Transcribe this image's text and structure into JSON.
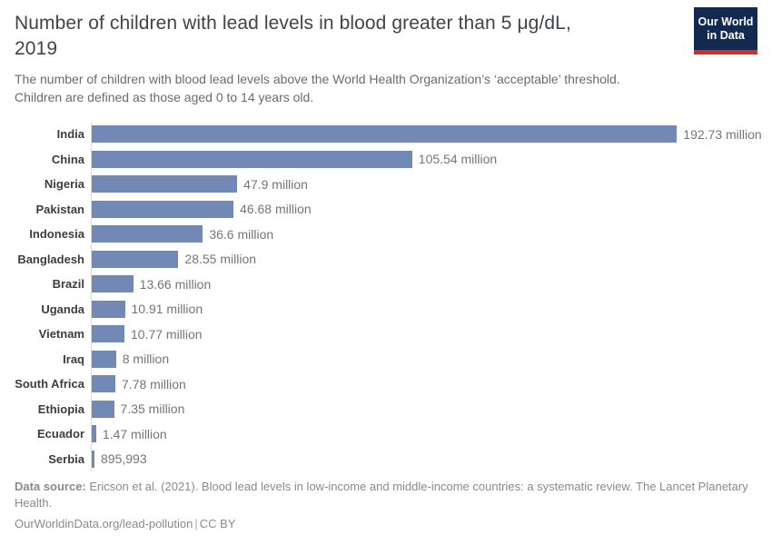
{
  "header": {
    "title_main": "Number of children with lead levels in blood greater than 5 μg/dL,",
    "title_year": "2019",
    "subtitle": "The number of children with blood lead levels above the World Health Organization’s ‘acceptable’ threshold. Children are defined as those aged 0 to 14 years old.",
    "logo": {
      "line1": "Our World",
      "line2": "in Data",
      "bg_color": "#122a50",
      "accent_color": "#cf3027"
    }
  },
  "chart_data": {
    "type": "bar",
    "orientation": "horizontal",
    "title": "Number of children with lead levels in blood greater than 5 μg/dL, 2019",
    "xlabel": "",
    "ylabel": "",
    "grid": false,
    "legend": "none",
    "xlim": [
      0,
      192730000
    ],
    "categories": [
      "India",
      "China",
      "Nigeria",
      "Pakistan",
      "Indonesia",
      "Bangladesh",
      "Brazil",
      "Uganda",
      "Vietnam",
      "Iraq",
      "South Africa",
      "Ethiopia",
      "Ecuador",
      "Serbia"
    ],
    "values": [
      192730000,
      105540000,
      47900000,
      46680000,
      36600000,
      28550000,
      13660000,
      10910000,
      10770000,
      8000000,
      7780000,
      7350000,
      1470000,
      895993
    ],
    "value_labels": [
      "192.73 million",
      "105.54 million",
      "47.9 million",
      "46.68 million",
      "36.6 million",
      "28.55 million",
      "13.66 million",
      "10.91 million",
      "10.77 million",
      "8 million",
      "7.78 million",
      "7.35 million",
      "1.47 million",
      "895,993"
    ],
    "bar_color": "#7289b5",
    "axis_line_color": "#dadada"
  },
  "footer": {
    "source_label": "Data source:",
    "source_text": "Ericson et al. (2021). Blood lead levels in low-income and middle-income countries: a systematic review. The Lancet Planetary Health.",
    "link": "OurWorldinData.org/lead-pollution",
    "separator": "|",
    "license": "CC BY"
  }
}
